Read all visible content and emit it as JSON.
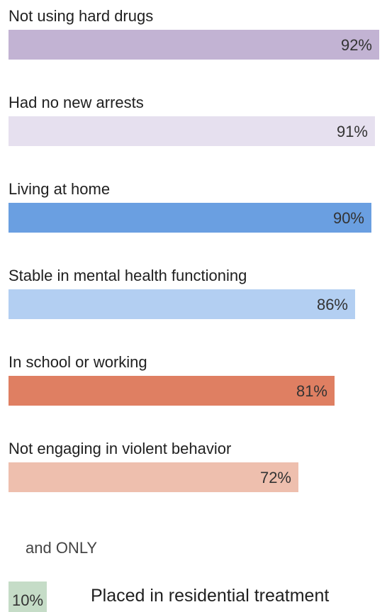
{
  "chart_data": {
    "type": "bar",
    "orientation": "horizontal",
    "categories": [
      "Not using hard drugs",
      "Had no new arrests",
      "Living at home",
      "Stable in mental health functioning",
      "In school or working",
      "Not engaging in violent behavior"
    ],
    "values": [
      92,
      91,
      90,
      86,
      81,
      72
    ],
    "value_labels": [
      "92%",
      "91%",
      "90%",
      "86%",
      "81%",
      "72%"
    ],
    "colors": [
      "#c2b3d3",
      "#e6e0ef",
      "#6a9fe1",
      "#b3cff2",
      "#df7f62",
      "#eebfae"
    ],
    "xlim": [
      0,
      92
    ],
    "connector_text": "and ONLY",
    "extra": {
      "value": 10,
      "value_label": "10%",
      "label": "Placed in residential treatment",
      "color": "#c5dcc7"
    },
    "title": "",
    "xlabel": "",
    "ylabel": "",
    "grid": false,
    "legend": "none"
  }
}
